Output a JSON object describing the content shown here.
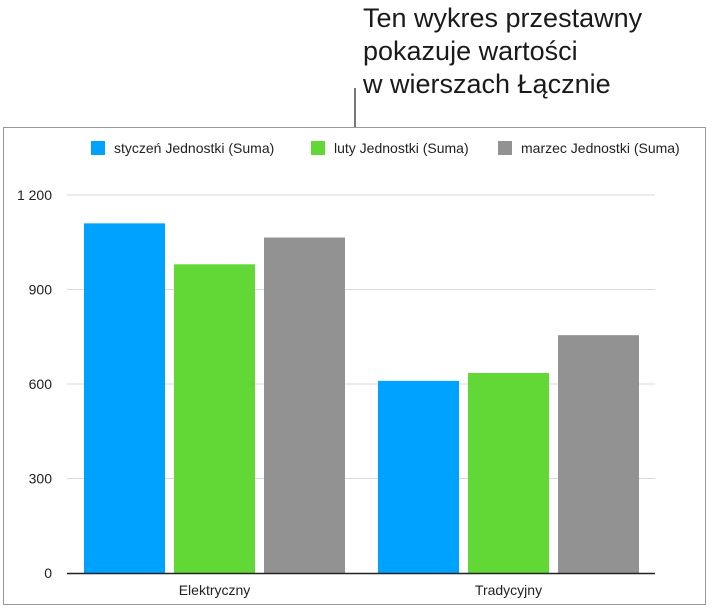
{
  "callout": {
    "lines": [
      "Ten wykres przestawny",
      "pokazuje wartości",
      "w wierszach Łącznie"
    ]
  },
  "chart_data": {
    "type": "bar",
    "categories": [
      "Elektryczny",
      "Tradycyjny"
    ],
    "series": [
      {
        "name": "styczeń Jednostki (Suma)",
        "color": "#00a2ff",
        "values": [
          1110,
          610
        ]
      },
      {
        "name": "luty Jednostki (Suma)",
        "color": "#61d836",
        "values": [
          980,
          635
        ]
      },
      {
        "name": "marzec Jednostki (Suma)",
        "color": "#929292",
        "values": [
          1065,
          755
        ]
      }
    ],
    "yticks": [
      "0",
      "300",
      "600",
      "900",
      "1 200"
    ],
    "ytick_values": [
      0,
      300,
      600,
      900,
      1200
    ],
    "ylim": [
      0,
      1200
    ],
    "grid": true,
    "legend": "top"
  }
}
